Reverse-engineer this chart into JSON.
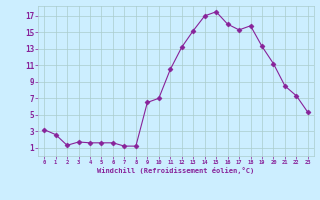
{
  "x": [
    0,
    1,
    2,
    3,
    4,
    5,
    6,
    7,
    8,
    9,
    10,
    11,
    12,
    13,
    14,
    15,
    16,
    17,
    18,
    19,
    20,
    21,
    22,
    23
  ],
  "y": [
    3.2,
    2.6,
    1.3,
    1.7,
    1.6,
    1.6,
    1.6,
    1.2,
    1.2,
    6.5,
    7.0,
    10.5,
    13.2,
    15.2,
    17.0,
    17.5,
    16.0,
    15.3,
    15.8,
    13.3,
    11.2,
    8.5,
    7.3,
    5.3
  ],
  "xlabel": "Windchill (Refroidissement éolien,°C)",
  "xlim": [
    -0.5,
    23.5
  ],
  "ylim": [
    0,
    18.2
  ],
  "yticks": [
    1,
    3,
    5,
    7,
    9,
    11,
    13,
    15,
    17
  ],
  "xticks": [
    0,
    1,
    2,
    3,
    4,
    5,
    6,
    7,
    8,
    9,
    10,
    11,
    12,
    13,
    14,
    15,
    16,
    17,
    18,
    19,
    20,
    21,
    22,
    23
  ],
  "line_color": "#882299",
  "marker": "D",
  "marker_size": 2.5,
  "bg_color": "#cceeff",
  "grid_color": "#aacccc",
  "tick_color": "#882299",
  "label_color": "#882299"
}
